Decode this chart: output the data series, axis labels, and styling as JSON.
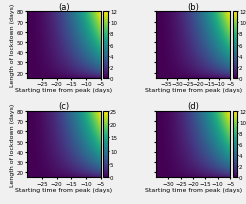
{
  "panels": [
    "(a)",
    "(b)",
    "(c)",
    "(d)"
  ],
  "panels_config": [
    {
      "label": "(a)",
      "xmin": -30,
      "xmax": -5,
      "xticks": [
        -25,
        -20,
        -15,
        -10,
        -5
      ],
      "vmin": 0,
      "vmax": 12,
      "cticks": [
        0,
        2,
        4,
        6,
        8,
        10,
        12
      ]
    },
    {
      "label": "(b)",
      "xmin": -40,
      "xmax": -5,
      "xticks": [
        -35,
        -30,
        -25,
        -20,
        -15,
        -10,
        -5
      ],
      "vmin": 0,
      "vmax": 12,
      "cticks": [
        0,
        2,
        4,
        6,
        8,
        10,
        12
      ]
    },
    {
      "label": "(c)",
      "xmin": -30,
      "xmax": -5,
      "xticks": [
        -25,
        -20,
        -15,
        -10,
        -5
      ],
      "vmin": 0,
      "vmax": 25,
      "cticks": [
        0,
        5,
        10,
        15,
        20,
        25
      ]
    },
    {
      "label": "(d)",
      "xmin": -35,
      "xmax": -5,
      "xticks": [
        -30,
        -25,
        -20,
        -15,
        -10,
        -5
      ],
      "vmin": 0,
      "vmax": 12,
      "cticks": [
        0,
        2,
        4,
        6,
        8,
        10,
        12
      ]
    }
  ],
  "ylim": [
    15,
    80
  ],
  "yticks": [
    20,
    30,
    40,
    50,
    60,
    70,
    80
  ],
  "xlabel": "Starting time from peak (days)",
  "ylabel": "Length of lockdown (days)",
  "colormap": "viridis",
  "background_color": "#f0f0f0",
  "title_fontsize": 6,
  "label_fontsize": 4.5,
  "tick_fontsize": 4,
  "cbar_fontsize": 4
}
